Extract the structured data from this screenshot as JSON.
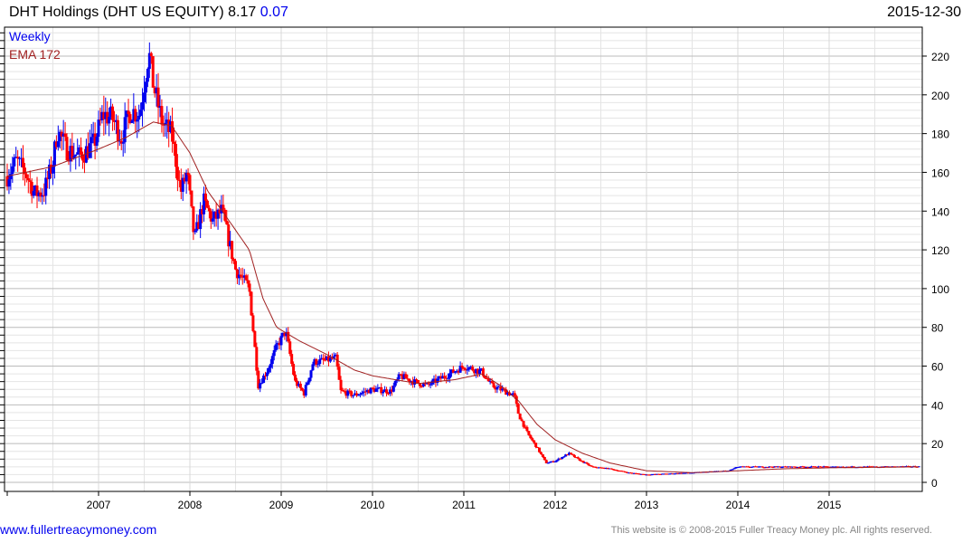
{
  "header": {
    "name": "DHT Holdings (DHT US EQUITY)",
    "last": "8.17",
    "change": "0.07",
    "date": "2015-12-30"
  },
  "footer": {
    "site": "www.fullertreacymoney.com",
    "copyright": "This website is © 2008-2015 Fuller Treacy Money plc. All rights reserved."
  },
  "colors": {
    "up": "#0000ee",
    "down": "#ff0000",
    "ema": "#a02020",
    "grid": "#e4e4e4",
    "grid_major": "#bbbbbb"
  },
  "chart_data": {
    "type": "candlestick",
    "title": "DHT Holdings (DHT US EQUITY)",
    "legend": [
      "Weekly",
      "EMA 172"
    ],
    "legend_position": "top-left",
    "xlim": [
      2006.0,
      2016.0
    ],
    "ylim": [
      -5,
      235
    ],
    "x_ticks": [
      "2007",
      "2008",
      "2009",
      "2010",
      "2011",
      "2012",
      "2013",
      "2014",
      "2015"
    ],
    "y_ticks": [
      0,
      20,
      40,
      60,
      80,
      100,
      120,
      140,
      160,
      180,
      200,
      220
    ],
    "price_path": [
      [
        2006.0,
        158
      ],
      [
        2006.1,
        166
      ],
      [
        2006.2,
        160
      ],
      [
        2006.3,
        149
      ],
      [
        2006.4,
        150
      ],
      [
        2006.5,
        165
      ],
      [
        2006.55,
        182
      ],
      [
        2006.65,
        172
      ],
      [
        2006.8,
        168
      ],
      [
        2006.95,
        175
      ],
      [
        2007.05,
        190
      ],
      [
        2007.15,
        188
      ],
      [
        2007.25,
        178
      ],
      [
        2007.35,
        192
      ],
      [
        2007.45,
        190
      ],
      [
        2007.55,
        222
      ],
      [
        2007.6,
        205
      ],
      [
        2007.7,
        185
      ],
      [
        2007.8,
        180
      ],
      [
        2007.9,
        150
      ],
      [
        2007.97,
        160
      ],
      [
        2008.05,
        125
      ],
      [
        2008.15,
        145
      ],
      [
        2008.25,
        135
      ],
      [
        2008.35,
        140
      ],
      [
        2008.5,
        110
      ],
      [
        2008.65,
        100
      ],
      [
        2008.7,
        75
      ],
      [
        2008.75,
        50
      ],
      [
        2008.85,
        58
      ],
      [
        2008.95,
        70
      ],
      [
        2009.05,
        78
      ],
      [
        2009.15,
        52
      ],
      [
        2009.25,
        46
      ],
      [
        2009.35,
        62
      ],
      [
        2009.5,
        63
      ],
      [
        2009.6,
        64
      ],
      [
        2009.65,
        47
      ],
      [
        2009.8,
        45
      ],
      [
        2010.0,
        48
      ],
      [
        2010.2,
        47
      ],
      [
        2010.3,
        55
      ],
      [
        2010.45,
        52
      ],
      [
        2010.6,
        50
      ],
      [
        2010.8,
        55
      ],
      [
        2011.0,
        60
      ],
      [
        2011.2,
        57
      ],
      [
        2011.3,
        50
      ],
      [
        2011.45,
        47
      ],
      [
        2011.55,
        45
      ],
      [
        2011.6,
        35
      ],
      [
        2011.7,
        25
      ],
      [
        2011.8,
        18
      ],
      [
        2011.9,
        10
      ],
      [
        2012.0,
        11
      ],
      [
        2012.15,
        15
      ],
      [
        2012.25,
        12
      ],
      [
        2012.4,
        8
      ],
      [
        2012.6,
        7
      ],
      [
        2012.8,
        5
      ],
      [
        2013.0,
        4
      ],
      [
        2013.5,
        5
      ],
      [
        2013.9,
        6
      ],
      [
        2014.0,
        8
      ],
      [
        2014.5,
        8
      ],
      [
        2015.0,
        8
      ],
      [
        2015.5,
        8
      ],
      [
        2015.99,
        8.17
      ]
    ],
    "ema_path": [
      [
        2006.0,
        158
      ],
      [
        2006.5,
        163
      ],
      [
        2007.0,
        172
      ],
      [
        2007.3,
        178
      ],
      [
        2007.6,
        186
      ],
      [
        2007.8,
        184
      ],
      [
        2008.0,
        170
      ],
      [
        2008.2,
        150
      ],
      [
        2008.4,
        137
      ],
      [
        2008.65,
        120
      ],
      [
        2008.8,
        95
      ],
      [
        2008.95,
        80
      ],
      [
        2009.2,
        73
      ],
      [
        2009.5,
        66
      ],
      [
        2009.8,
        58
      ],
      [
        2010.0,
        55
      ],
      [
        2010.5,
        51
      ],
      [
        2010.9,
        53
      ],
      [
        2011.2,
        56
      ],
      [
        2011.4,
        50
      ],
      [
        2011.6,
        42
      ],
      [
        2011.8,
        30
      ],
      [
        2012.0,
        22
      ],
      [
        2012.3,
        15
      ],
      [
        2012.6,
        10
      ],
      [
        2013.0,
        6
      ],
      [
        2013.5,
        5
      ],
      [
        2014.0,
        6
      ],
      [
        2014.5,
        7
      ],
      [
        2015.0,
        7.5
      ],
      [
        2015.99,
        8
      ]
    ]
  }
}
